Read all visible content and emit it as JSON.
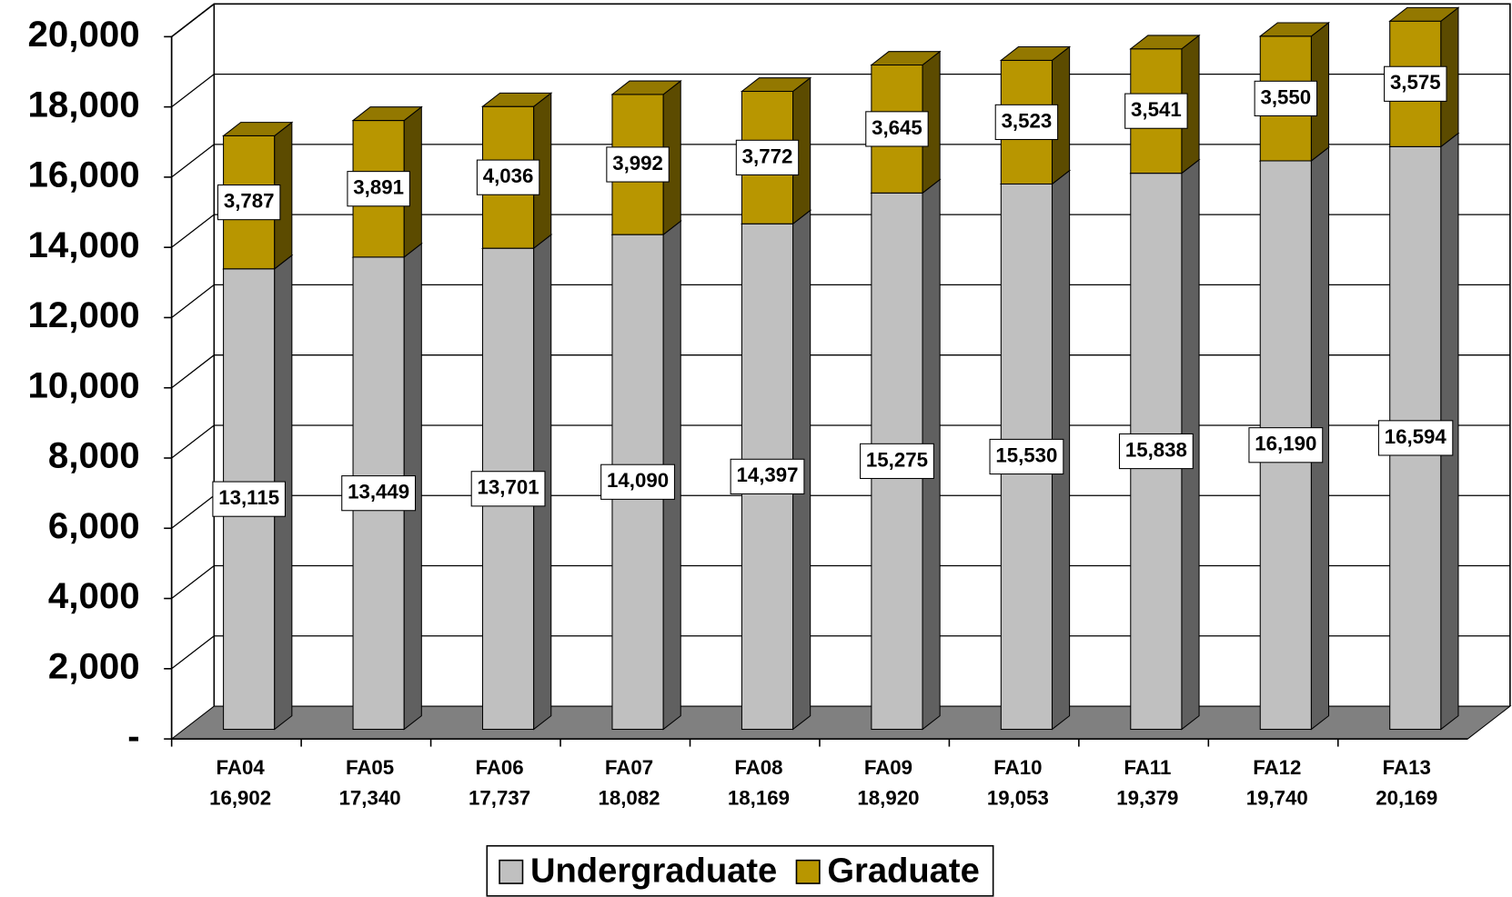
{
  "chart_data": {
    "type": "bar3d_stacked",
    "categories": [
      "FA04",
      "FA05",
      "FA06",
      "FA07",
      "FA08",
      "FA09",
      "FA10",
      "FA11",
      "FA12",
      "FA13"
    ],
    "total_labels": [
      "16,902",
      "17,340",
      "17,737",
      "18,082",
      "18,169",
      "18,920",
      "19,053",
      "19,379",
      "19,740",
      "20,169"
    ],
    "series": [
      {
        "name": "Undergraduate",
        "color": "#c0c0c0",
        "values": [
          13115,
          13449,
          13701,
          14090,
          14397,
          15275,
          15530,
          15838,
          16190,
          16594
        ],
        "value_labels": [
          "13,115",
          "13,449",
          "13,701",
          "14,090",
          "14,397",
          "15,275",
          "15,530",
          "15,838",
          "16,190",
          "16,594"
        ]
      },
      {
        "name": "Graduate",
        "color": "#b89600",
        "values": [
          3787,
          3891,
          4036,
          3992,
          3772,
          3645,
          3523,
          3541,
          3550,
          3575
        ],
        "value_labels": [
          "3,787",
          "3,891",
          "4,036",
          "3,992",
          "3,772",
          "3,645",
          "3,523",
          "3,541",
          "3,550",
          "3,575"
        ]
      }
    ],
    "ylim": [
      0,
      20000
    ],
    "yticks": [
      {
        "value": 0,
        "label": "-"
      },
      {
        "value": 2000,
        "label": "2,000"
      },
      {
        "value": 4000,
        "label": "4,000"
      },
      {
        "value": 6000,
        "label": "6,000"
      },
      {
        "value": 8000,
        "label": "8,000"
      },
      {
        "value": 10000,
        "label": "10,000"
      },
      {
        "value": 12000,
        "label": "12,000"
      },
      {
        "value": 14000,
        "label": "14,000"
      },
      {
        "value": 16000,
        "label": "16,000"
      },
      {
        "value": 18000,
        "label": "18,000"
      },
      {
        "value": 20000,
        "label": "20,000"
      }
    ],
    "grid": true,
    "legend": "bottom"
  }
}
